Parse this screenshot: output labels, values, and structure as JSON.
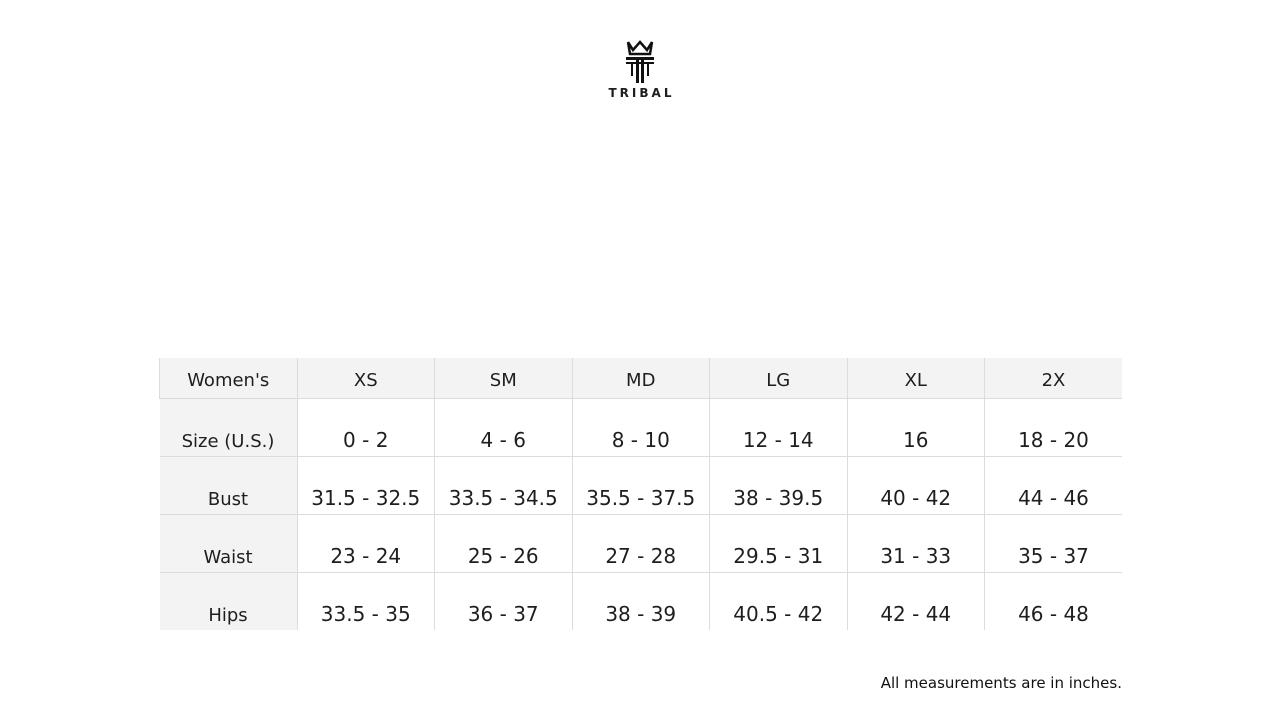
{
  "brand": {
    "name": "TRIBAL",
    "logo_icon": "crown-t-logo-icon"
  },
  "table": {
    "headers": [
      "Women's",
      "XS",
      "SM",
      "MD",
      "LG",
      "XL",
      "2X"
    ],
    "rows": [
      {
        "label": "Size (U.S.)",
        "values": [
          "0 - 2",
          "4 - 6",
          "8 - 10",
          "12 - 14",
          "16",
          "18 - 20"
        ]
      },
      {
        "label": "Bust",
        "values": [
          "31.5 - 32.5",
          "33.5 - 34.5",
          "35.5 - 37.5",
          "38 - 39.5",
          "40 - 42",
          "44 - 46"
        ]
      },
      {
        "label": "Waist",
        "values": [
          "23 - 24",
          "25 - 26",
          "27 - 28",
          "29.5 - 31",
          "31 - 33",
          "35 - 37"
        ]
      },
      {
        "label": "Hips",
        "values": [
          "33.5 - 35",
          "36 - 37",
          "38 - 39",
          "40.5 - 42",
          "42 - 44",
          "46 - 48"
        ]
      }
    ]
  },
  "note": "All measurements are in inches."
}
